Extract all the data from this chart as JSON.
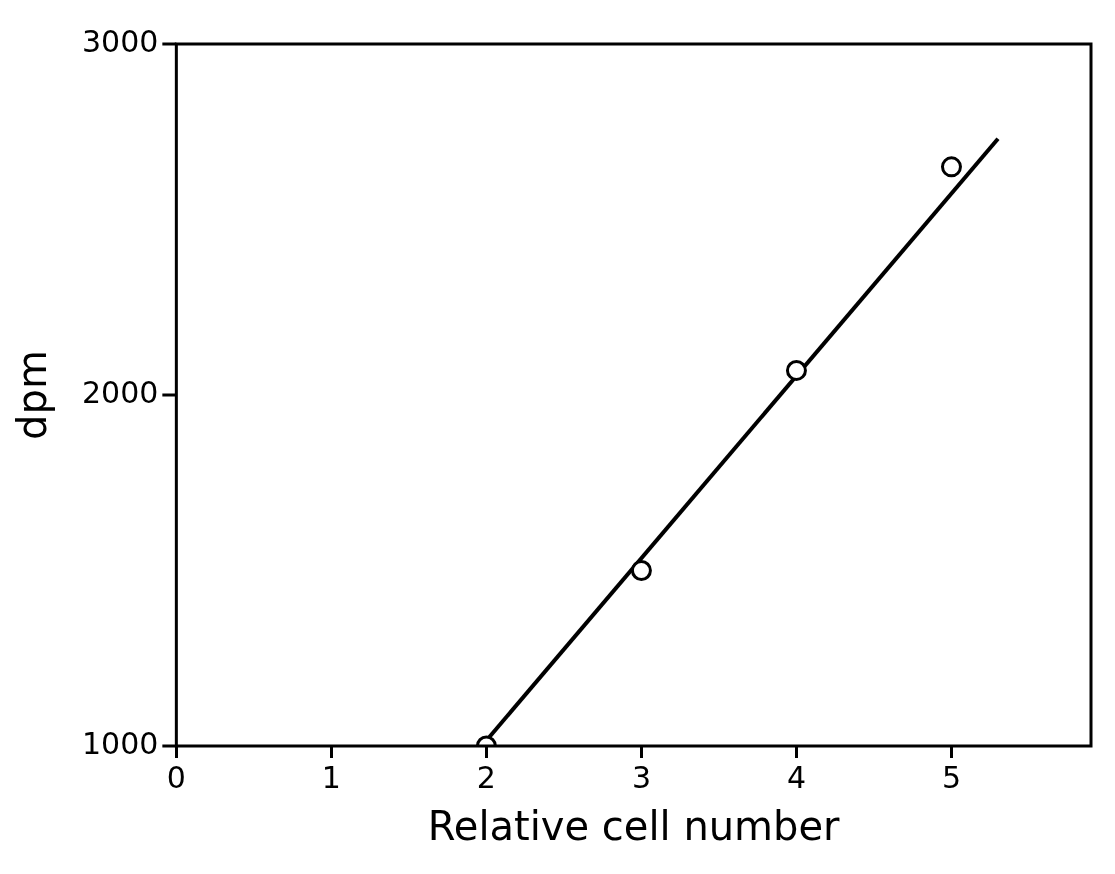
{
  "chart_data": {
    "type": "scatter",
    "xlabel": "Relative cell number",
    "ylabel": "dpm",
    "xlim": [
      0,
      5.9
    ],
    "xticks": [
      0,
      1,
      2,
      3,
      4,
      5
    ],
    "ylim": [
      1000,
      3000
    ],
    "yticks": [
      1000,
      2000,
      3000
    ],
    "grid": false,
    "legend": false,
    "marker": "circle",
    "x": [
      2,
      3,
      4,
      5
    ],
    "series": [
      {
        "color": "#000000",
        "values": [
          1000,
          1500,
          2070,
          2650
        ]
      },
      {
        "type": "line",
        "color": "#000000",
        "x": [
          1.97,
          5.3
        ],
        "values": [
          1000,
          2730
        ],
        "marker": "none",
        "line_style": "solid"
      }
    ]
  }
}
